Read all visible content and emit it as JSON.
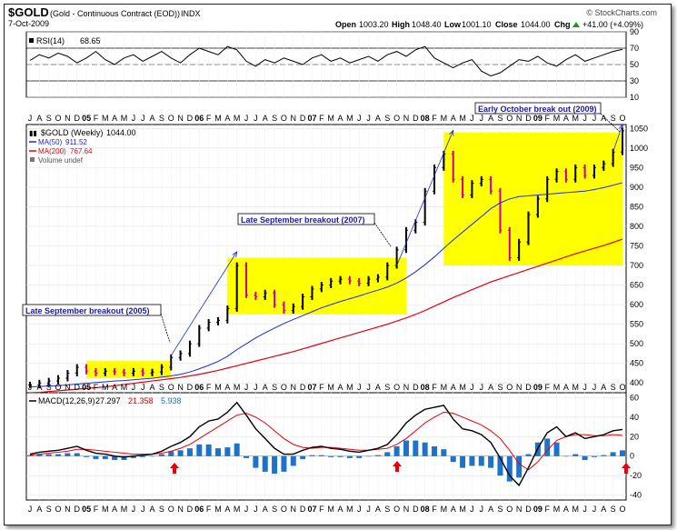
{
  "header": {
    "symbol": "$GOLD",
    "name": "(Gold - Continuous Contract (EOD))",
    "exchange": "INDX",
    "date": "7-Oct-2009",
    "watermark": "© StockCharts.com",
    "open_label": "Open",
    "open": "1003.20",
    "high_label": "High",
    "high": "1048.40",
    "low_label": "Low",
    "low": "1001.10",
    "close_label": "Close",
    "close": "1044.00",
    "chg_label": "Chg",
    "chg": "+41.00 (+4.09%)",
    "chg_arrow": "up-arrow-icon"
  },
  "rsi": {
    "label": "RSI(14)",
    "value": "68.65",
    "ticks": [
      90,
      70,
      50,
      30,
      10
    ],
    "overbought": 70,
    "oversold": 30
  },
  "price_legend": {
    "main": "$GOLD (Weekly)",
    "main_value": "1044.00",
    "ma50": "MA(50)",
    "ma50_value": "911.52",
    "ma200": "MA(200)",
    "ma200_value": "767.64",
    "volume": "Volume undef"
  },
  "annotations": [
    {
      "text": "Late September breakout (2005)"
    },
    {
      "text": "Late September breakout (2007)"
    },
    {
      "text": "Early October break out (2009)"
    }
  ],
  "macd": {
    "label": "MACD(12,26,9)",
    "macd": "27.297",
    "signal": "21.358",
    "hist": "5.938",
    "ticks": [
      60,
      40,
      20,
      0,
      -20,
      -40
    ]
  },
  "x_axis": {
    "labels": [
      "J",
      "A",
      "S",
      "O",
      "N",
      "D",
      "05",
      "F",
      "M",
      "A",
      "M",
      "J",
      "J",
      "A",
      "S",
      "O",
      "N",
      "D",
      "06",
      "F",
      "M",
      "A",
      "M",
      "J",
      "J",
      "A",
      "S",
      "O",
      "N",
      "D",
      "07",
      "F",
      "M",
      "A",
      "M",
      "J",
      "J",
      "A",
      "S",
      "O",
      "N",
      "D",
      "08",
      "F",
      "M",
      "A",
      "M",
      "J",
      "J",
      "A",
      "S",
      "O",
      "N",
      "D",
      "09",
      "F",
      "M",
      "A",
      "M",
      "J",
      "J",
      "A",
      "S",
      "O"
    ]
  },
  "colors": {
    "price": "#000000",
    "up_bar": "#000000",
    "down_bar": "#cc0099",
    "ma50": "#000000",
    "ma200": "#e8000a",
    "highlight": "#ffff00",
    "trend_arrow": "#1a2bd6",
    "macd_hist": "#1e73c8",
    "signal_arrow": "#e8000a",
    "annotation_text": "#1a1aa8"
  },
  "chart_data": [
    {
      "type": "line",
      "title": "RSI(14)",
      "ylim": [
        10,
        90
      ],
      "series": [
        {
          "name": "RSI(14)",
          "values": [
            55,
            62,
            58,
            64,
            60,
            52,
            58,
            66,
            56,
            50,
            58,
            62,
            54,
            60,
            66,
            58,
            52,
            62,
            70,
            66,
            62,
            72,
            68,
            54,
            48,
            56,
            52,
            58,
            54,
            50,
            58,
            62,
            54,
            58,
            52,
            56,
            60,
            54,
            62,
            66,
            60,
            68,
            72,
            58,
            52,
            46,
            52,
            56,
            42,
            36,
            40,
            48,
            56,
            54,
            60,
            52,
            48,
            56,
            62,
            54,
            58,
            62,
            66,
            68.65
          ]
        }
      ]
    },
    {
      "type": "line",
      "title": "$GOLD (Weekly)",
      "ylim": [
        375,
        1060
      ],
      "categories": [
        "J",
        "A",
        "S",
        "O",
        "N",
        "D",
        "05",
        "F",
        "M",
        "A",
        "M",
        "J",
        "J",
        "A",
        "S",
        "O",
        "N",
        "D",
        "06",
        "F",
        "M",
        "A",
        "M",
        "J",
        "J",
        "A",
        "S",
        "O",
        "N",
        "D",
        "07",
        "F",
        "M",
        "A",
        "M",
        "J",
        "J",
        "A",
        "S",
        "O",
        "N",
        "D",
        "08",
        "F",
        "M",
        "A",
        "M",
        "J",
        "J",
        "A",
        "S",
        "O",
        "N",
        "D",
        "09",
        "F",
        "M",
        "A",
        "M",
        "J",
        "J",
        "A",
        "S",
        "O"
      ],
      "series": [
        {
          "name": "$GOLD (Weekly)",
          "values": [
            395,
            400,
            405,
            412,
            425,
            440,
            430,
            425,
            430,
            428,
            425,
            430,
            425,
            428,
            440,
            465,
            475,
            500,
            540,
            555,
            560,
            590,
            700,
            625,
            620,
            630,
            600,
            585,
            595,
            620,
            640,
            650,
            660,
            665,
            660,
            655,
            665,
            670,
            700,
            740,
            790,
            810,
            890,
            950,
            985,
            920,
            880,
            910,
            920,
            890,
            790,
            720,
            760,
            830,
            870,
            920,
            940,
            920,
            950,
            930,
            950,
            960,
            990,
            1044
          ]
        },
        {
          "name": "MA(50)",
          "values": [
            390,
            391,
            392,
            393,
            395,
            397,
            399,
            401,
            403,
            405,
            406,
            408,
            410,
            412,
            415,
            418,
            422,
            428,
            436,
            445,
            455,
            468,
            485,
            500,
            515,
            528,
            540,
            552,
            562,
            572,
            582,
            592,
            600,
            608,
            615,
            622,
            630,
            637,
            645,
            655,
            668,
            684,
            702,
            722,
            744,
            765,
            785,
            805,
            825,
            845,
            860,
            870,
            876,
            878,
            880,
            882,
            884,
            886,
            888,
            890,
            894,
            899,
            905,
            911.52
          ]
        },
        {
          "name": "MA(200)",
          "values": [
            375,
            376,
            378,
            380,
            382,
            384,
            386,
            388,
            390,
            393,
            396,
            399,
            402,
            405,
            408,
            411,
            414,
            418,
            422,
            427,
            432,
            438,
            444,
            450,
            456,
            462,
            468,
            474,
            480,
            487,
            494,
            501,
            508,
            515,
            522,
            529,
            536,
            543,
            550,
            558,
            566,
            575,
            585,
            596,
            607,
            618,
            628,
            638,
            648,
            658,
            666,
            674,
            682,
            690,
            698,
            706,
            714,
            722,
            730,
            737,
            744,
            751,
            759,
            767.64
          ]
        }
      ]
    },
    {
      "type": "line",
      "title": "MACD(12,26,9)",
      "ylim": [
        -45,
        65
      ],
      "series": [
        {
          "name": "MACD",
          "values": [
            2,
            4,
            5,
            6,
            8,
            10,
            6,
            3,
            2,
            0,
            -1,
            0,
            1,
            2,
            5,
            10,
            14,
            20,
            30,
            36,
            38,
            45,
            55,
            42,
            28,
            18,
            8,
            2,
            2,
            6,
            9,
            10,
            8,
            7,
            5,
            4,
            6,
            8,
            12,
            22,
            34,
            42,
            48,
            50,
            52,
            38,
            28,
            26,
            22,
            14,
            -2,
            -20,
            -30,
            -12,
            8,
            24,
            30,
            20,
            24,
            18,
            20,
            22,
            26,
            27.297
          ]
        },
        {
          "name": "Signal",
          "values": [
            1,
            2,
            3,
            4,
            5,
            7,
            7,
            6,
            5,
            4,
            3,
            2,
            2,
            2,
            3,
            5,
            8,
            12,
            18,
            24,
            30,
            36,
            42,
            44,
            40,
            34,
            26,
            18,
            12,
            9,
            8,
            9,
            9,
            8,
            7,
            6,
            6,
            7,
            8,
            12,
            18,
            26,
            34,
            40,
            45,
            44,
            40,
            36,
            32,
            26,
            18,
            6,
            -8,
            -14,
            -6,
            6,
            16,
            20,
            22,
            22,
            21,
            21,
            22,
            21.358
          ]
        }
      ]
    }
  ]
}
